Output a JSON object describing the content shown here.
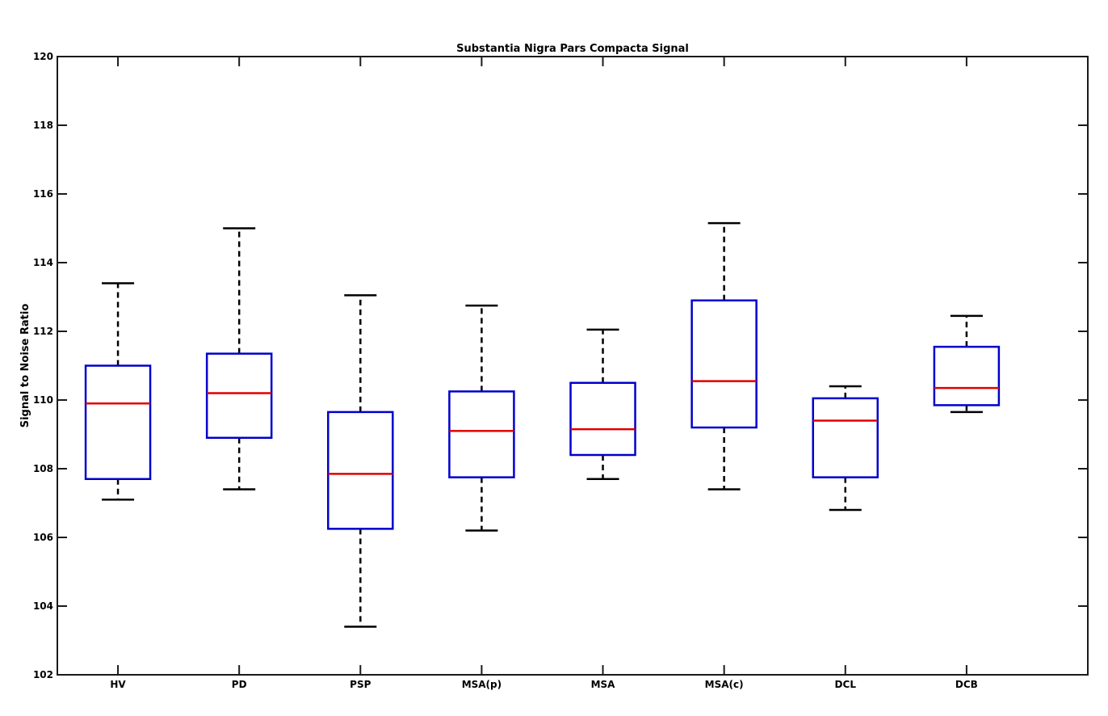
{
  "chart_data": {
    "type": "box",
    "title": "Substantia Nigra Pars Compacta Signal",
    "xlabel": "",
    "ylabel": "Signal to Noise Ratio",
    "ylim": [
      102,
      120
    ],
    "yticks": [
      102,
      104,
      106,
      108,
      110,
      112,
      114,
      116,
      118,
      120
    ],
    "ytick_labels": [
      "102",
      "104",
      "106",
      "108",
      "110",
      "112",
      "114",
      "116",
      "118",
      "120"
    ],
    "categories": [
      "HV",
      "PD",
      "PSP",
      "MSA(p)",
      "MSA",
      "MSA(c)",
      "DCL",
      "DCB"
    ],
    "boxes": [
      {
        "label": "HV",
        "whisker_low": 107.1,
        "q1": 107.7,
        "median": 109.9,
        "q3": 111.0,
        "whisker_high": 113.4
      },
      {
        "label": "PD",
        "whisker_low": 107.4,
        "q1": 108.9,
        "median": 110.2,
        "q3": 111.35,
        "whisker_high": 115.0
      },
      {
        "label": "PSP",
        "whisker_low": 103.4,
        "q1": 106.25,
        "median": 107.85,
        "q3": 109.65,
        "whisker_high": 113.05
      },
      {
        "label": "MSA(p)",
        "whisker_low": 106.2,
        "q1": 107.75,
        "median": 109.1,
        "q3": 110.25,
        "whisker_high": 112.75
      },
      {
        "label": "MSA",
        "whisker_low": 107.7,
        "q1": 108.4,
        "median": 109.15,
        "q3": 110.5,
        "whisker_high": 112.05
      },
      {
        "label": "MSA(c)",
        "whisker_low": 107.4,
        "q1": 109.2,
        "median": 110.55,
        "q3": 112.9,
        "whisker_high": 115.15
      },
      {
        "label": "DCL",
        "whisker_low": 106.8,
        "q1": 107.75,
        "median": 109.4,
        "q3": 110.05,
        "whisker_high": 110.4
      },
      {
        "label": "DCB",
        "whisker_low": 109.65,
        "q1": 109.85,
        "median": 110.35,
        "q3": 111.55,
        "whisker_high": 112.45
      }
    ],
    "colors": {
      "box": "#0000cc",
      "median": "#e00000",
      "whisker": "#000000",
      "axes": "#1a1a1a"
    },
    "grid": false,
    "legend": "none"
  }
}
